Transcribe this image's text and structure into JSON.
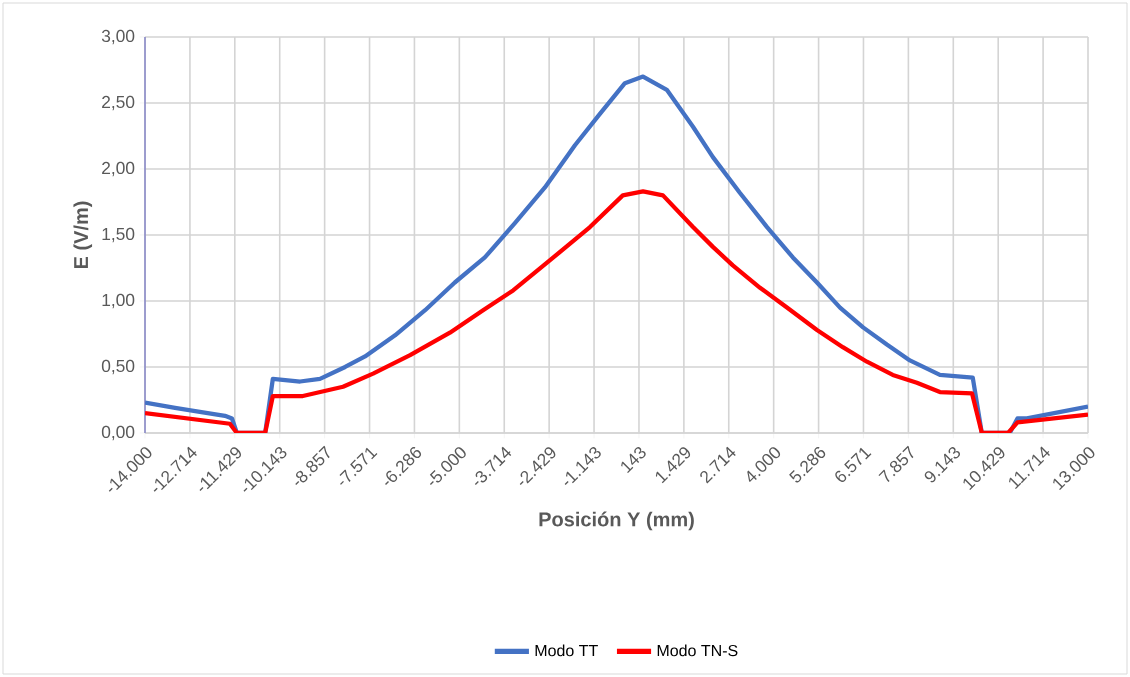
{
  "chart_data": {
    "type": "line",
    "xlabel": "Posición Y (mm)",
    "ylabel": "E (V/m)",
    "xlim": [
      -14000,
      13000
    ],
    "ylim": [
      0,
      3
    ],
    "xticks": [
      {
        "value": -14000,
        "label": "-14.000"
      },
      {
        "value": -12714,
        "label": "-12.714"
      },
      {
        "value": -11429,
        "label": "-11.429"
      },
      {
        "value": -10143,
        "label": "-10.143"
      },
      {
        "value": -8857,
        "label": "-8.857"
      },
      {
        "value": -7571,
        "label": "-7.571"
      },
      {
        "value": -6286,
        "label": "-6.286"
      },
      {
        "value": -5000,
        "label": "-5.000"
      },
      {
        "value": -3714,
        "label": "-3.714"
      },
      {
        "value": -2429,
        "label": "-2.429"
      },
      {
        "value": -1143,
        "label": "-1.143"
      },
      {
        "value": 143,
        "label": "143"
      },
      {
        "value": 1429,
        "label": "1.429"
      },
      {
        "value": 2714,
        "label": "2.714"
      },
      {
        "value": 4000,
        "label": "4.000"
      },
      {
        "value": 5286,
        "label": "5.286"
      },
      {
        "value": 6571,
        "label": "6.571"
      },
      {
        "value": 7857,
        "label": "7.857"
      },
      {
        "value": 9143,
        "label": "9.143"
      },
      {
        "value": 10429,
        "label": "10.429"
      },
      {
        "value": 11714,
        "label": "11.714"
      },
      {
        "value": 13000,
        "label": "13.000"
      }
    ],
    "yticks": [
      {
        "value": 0,
        "label": "0,00"
      },
      {
        "value": 0.5,
        "label": "0,50"
      },
      {
        "value": 1,
        "label": "1,00"
      },
      {
        "value": 1.5,
        "label": "1,50"
      },
      {
        "value": 2,
        "label": "2,00"
      },
      {
        "value": 2.5,
        "label": "2,50"
      },
      {
        "value": 3,
        "label": "3,00"
      }
    ],
    "grid": true,
    "legend": "bottom",
    "marker": "none",
    "line_style": "solid",
    "series": [
      {
        "name": "Modo TT",
        "color": "#4472c4",
        "x": [
          -14000,
          -13140,
          -12430,
          -11710,
          -11510,
          -11370,
          -10560,
          -10340,
          -9560,
          -8990,
          -8270,
          -7700,
          -6840,
          -5980,
          -5130,
          -4270,
          -3410,
          -2550,
          -1690,
          -970,
          -260,
          260,
          940,
          1690,
          2260,
          3030,
          3810,
          4550,
          5240,
          5900,
          6560,
          7240,
          7900,
          8760,
          9700,
          9960,
          10760,
          10980,
          11250,
          13000
        ],
        "values": [
          0.23,
          0.19,
          0.16,
          0.13,
          0.11,
          0,
          0,
          0.41,
          0.39,
          0.41,
          0.5,
          0.58,
          0.74,
          0.93,
          1.14,
          1.33,
          1.59,
          1.86,
          2.18,
          2.42,
          2.65,
          2.7,
          2.6,
          2.32,
          2.09,
          1.82,
          1.56,
          1.33,
          1.14,
          0.95,
          0.8,
          0.67,
          0.55,
          0.44,
          0.42,
          0,
          0,
          0.11,
          0.11,
          0.2
        ]
      },
      {
        "name": "Modo TN-S",
        "color": "#ff0000",
        "x": [
          -14000,
          -11570,
          -11370,
          -10560,
          -10340,
          -9480,
          -8330,
          -7470,
          -6410,
          -5270,
          -4320,
          -3460,
          -2490,
          -1260,
          -320,
          260,
          830,
          1690,
          2260,
          2830,
          3610,
          4380,
          5240,
          5980,
          6670,
          7410,
          8100,
          8760,
          9680,
          9960,
          10710,
          10980,
          13000
        ],
        "values": [
          0.15,
          0.07,
          0,
          0,
          0.28,
          0.28,
          0.35,
          0.45,
          0.59,
          0.76,
          0.93,
          1.08,
          1.29,
          1.56,
          1.8,
          1.83,
          1.8,
          1.56,
          1.41,
          1.27,
          1.1,
          0.95,
          0.78,
          0.65,
          0.54,
          0.44,
          0.38,
          0.31,
          0.3,
          0,
          0,
          0.08,
          0.14
        ]
      }
    ]
  }
}
